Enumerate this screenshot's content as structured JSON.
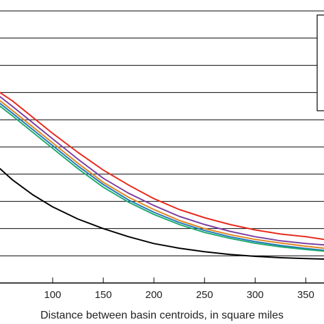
{
  "chart_data": {
    "type": "line",
    "title": "",
    "xlabel": "Distance between basin centroids, in square miles",
    "ylabel": "",
    "xlim": [
      48,
      368
    ],
    "ylim": [
      0,
      1
    ],
    "x_ticks": [
      100,
      150,
      200,
      250,
      300,
      350
    ],
    "y_gridlines": 10,
    "grid": true,
    "legend": {
      "position": "right",
      "entries": []
    },
    "series": [
      {
        "color": "#e8291c",
        "x": [
          48,
          60,
          80,
          100,
          125,
          150,
          175,
          200,
          225,
          250,
          275,
          300,
          325,
          350,
          368
        ],
        "y": [
          0.7,
          0.67,
          0.61,
          0.55,
          0.48,
          0.415,
          0.36,
          0.31,
          0.27,
          0.24,
          0.215,
          0.195,
          0.18,
          0.17,
          0.16
        ]
      },
      {
        "color": "#7b3fa0",
        "x": [
          48,
          60,
          80,
          100,
          125,
          150,
          175,
          200,
          225,
          250,
          275,
          300,
          325,
          350,
          368
        ],
        "y": [
          0.685,
          0.65,
          0.59,
          0.53,
          0.455,
          0.385,
          0.33,
          0.285,
          0.245,
          0.215,
          0.19,
          0.17,
          0.155,
          0.145,
          0.14
        ]
      },
      {
        "color": "#e0851f",
        "x": [
          48,
          60,
          80,
          100,
          125,
          150,
          175,
          200,
          225,
          250,
          275,
          300,
          325,
          350,
          368
        ],
        "y": [
          0.67,
          0.635,
          0.575,
          0.515,
          0.44,
          0.37,
          0.315,
          0.27,
          0.23,
          0.2,
          0.178,
          0.16,
          0.147,
          0.135,
          0.128
        ]
      },
      {
        "color": "#1f77b4",
        "x": [
          48,
          60,
          80,
          100,
          125,
          150,
          175,
          200,
          225,
          250,
          275,
          300,
          325,
          350,
          368
        ],
        "y": [
          0.66,
          0.625,
          0.565,
          0.505,
          0.43,
          0.362,
          0.305,
          0.26,
          0.222,
          0.193,
          0.17,
          0.152,
          0.138,
          0.127,
          0.12
        ]
      },
      {
        "color": "#1faa6e",
        "x": [
          48,
          60,
          80,
          100,
          125,
          150,
          175,
          200,
          225,
          250,
          275,
          300,
          325,
          350,
          368
        ],
        "y": [
          0.65,
          0.615,
          0.555,
          0.495,
          0.42,
          0.352,
          0.297,
          0.252,
          0.215,
          0.186,
          0.164,
          0.146,
          0.133,
          0.123,
          0.117
        ]
      },
      {
        "color": "#000000",
        "x": [
          48,
          60,
          80,
          100,
          125,
          150,
          175,
          200,
          225,
          250,
          275,
          300,
          325,
          350,
          368
        ],
        "y": [
          0.42,
          0.38,
          0.325,
          0.28,
          0.235,
          0.2,
          0.17,
          0.145,
          0.128,
          0.115,
          0.105,
          0.098,
          0.093,
          0.09,
          0.088
        ]
      }
    ]
  }
}
